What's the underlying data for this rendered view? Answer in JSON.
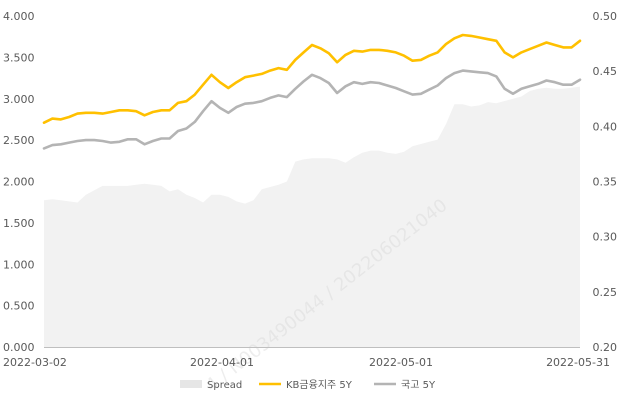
{
  "chart_data": {
    "type": "line",
    "x_ticks": [
      "2022-03-02",
      "2022-04-01",
      "2022-05-01",
      "2022-05-31"
    ],
    "y_left_ticks": [
      "4.000",
      "3.500",
      "3.000",
      "2.500",
      "2.000",
      "1.500",
      "1.000",
      "0.500",
      "0.000"
    ],
    "y_right_ticks": [
      "0.50",
      "0.45",
      "0.40",
      "0.35",
      "0.30",
      "0.25",
      "0.20"
    ],
    "ylim_left": [
      0,
      4
    ],
    "ylim_right": [
      0.2,
      0.5
    ],
    "grid": false,
    "legend_position": "bottom",
    "watermark": "4 / N003490044 / 20220602104​0",
    "series": [
      {
        "name": "Spread",
        "axis": "right",
        "kind": "area",
        "color": "#f2f2f2",
        "values": [
          0.333,
          0.334,
          0.333,
          0.332,
          0.331,
          0.338,
          0.342,
          0.346,
          0.346,
          0.346,
          0.346,
          0.347,
          0.348,
          0.347,
          0.346,
          0.341,
          0.343,
          0.338,
          0.335,
          0.331,
          0.338,
          0.338,
          0.336,
          0.332,
          0.33,
          0.333,
          0.343,
          0.345,
          0.347,
          0.35,
          0.368,
          0.37,
          0.371,
          0.371,
          0.371,
          0.37,
          0.367,
          0.372,
          0.376,
          0.378,
          0.378,
          0.376,
          0.375,
          0.377,
          0.382,
          0.384,
          0.386,
          0.388,
          0.402,
          0.42,
          0.42,
          0.418,
          0.419,
          0.422,
          0.421,
          0.423,
          0.425,
          0.427,
          0.432,
          0.434,
          0.435,
          0.434,
          0.434,
          0.435,
          0.436
        ]
      },
      {
        "name": "KB금융지주 5Y",
        "axis": "left",
        "kind": "line",
        "color": "#ffc000",
        "values": [
          2.71,
          2.76,
          2.75,
          2.78,
          2.82,
          2.83,
          2.83,
          2.82,
          2.84,
          2.86,
          2.86,
          2.85,
          2.8,
          2.84,
          2.86,
          2.86,
          2.95,
          2.97,
          3.05,
          3.17,
          3.29,
          3.2,
          3.13,
          3.2,
          3.26,
          3.28,
          3.3,
          3.34,
          3.37,
          3.35,
          3.47,
          3.56,
          3.65,
          3.61,
          3.55,
          3.44,
          3.53,
          3.58,
          3.57,
          3.59,
          3.59,
          3.58,
          3.56,
          3.52,
          3.46,
          3.47,
          3.52,
          3.56,
          3.66,
          3.73,
          3.77,
          3.76,
          3.74,
          3.72,
          3.7,
          3.56,
          3.5,
          3.56,
          3.6,
          3.64,
          3.68,
          3.65,
          3.62,
          3.62,
          3.7
        ]
      },
      {
        "name": "국고 5Y",
        "axis": "left",
        "kind": "line",
        "color": "#b4b4b4",
        "values": [
          2.4,
          2.44,
          2.45,
          2.47,
          2.49,
          2.5,
          2.5,
          2.49,
          2.47,
          2.48,
          2.51,
          2.51,
          2.45,
          2.49,
          2.52,
          2.52,
          2.61,
          2.64,
          2.72,
          2.85,
          2.97,
          2.89,
          2.83,
          2.9,
          2.94,
          2.95,
          2.97,
          3.01,
          3.04,
          3.02,
          3.12,
          3.21,
          3.29,
          3.25,
          3.19,
          3.07,
          3.15,
          3.2,
          3.18,
          3.2,
          3.19,
          3.16,
          3.13,
          3.09,
          3.05,
          3.06,
          3.11,
          3.16,
          3.25,
          3.31,
          3.34,
          3.33,
          3.32,
          3.31,
          3.27,
          3.12,
          3.06,
          3.12,
          3.15,
          3.18,
          3.22,
          3.2,
          3.17,
          3.17,
          3.23
        ]
      }
    ]
  }
}
